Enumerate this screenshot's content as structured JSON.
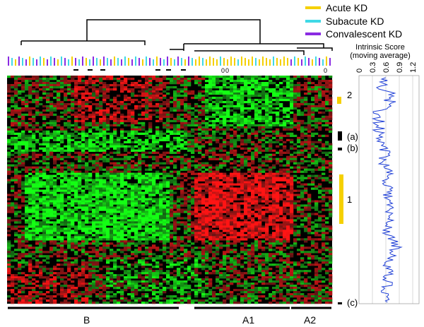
{
  "legend": {
    "items": [
      {
        "label": "Acute KD",
        "color": "#f5d000"
      },
      {
        "label": "Subacute KD",
        "color": "#3fd9e6"
      },
      {
        "label": "Convalescent KD",
        "color": "#8a2be2"
      }
    ]
  },
  "score_panel": {
    "title_line1": "Intrinsic Score",
    "title_line2": "(moving average)",
    "ticks": [
      "0",
      "0.3",
      "0.6",
      "0.9",
      "1.2"
    ],
    "line_color": "#1f3fd6"
  },
  "cluster_labels": {
    "two": "2",
    "a": "(a)",
    "b": "(b)",
    "one": "1",
    "c": "(c)"
  },
  "cluster_marker_colors": {
    "yellow": "#f5d000",
    "black": "#000000"
  },
  "bottom_groups": {
    "b": "B",
    "a1": "A1",
    "a2": "A2"
  },
  "tree_markers": {
    "zero_a": "0",
    "zero_b": "0",
    "zero_c": "0",
    "zero_d": "0"
  },
  "heatmap_colors": {
    "up": "#ff2a2a",
    "down": "#2aff2a",
    "neutral": "#000000"
  }
}
